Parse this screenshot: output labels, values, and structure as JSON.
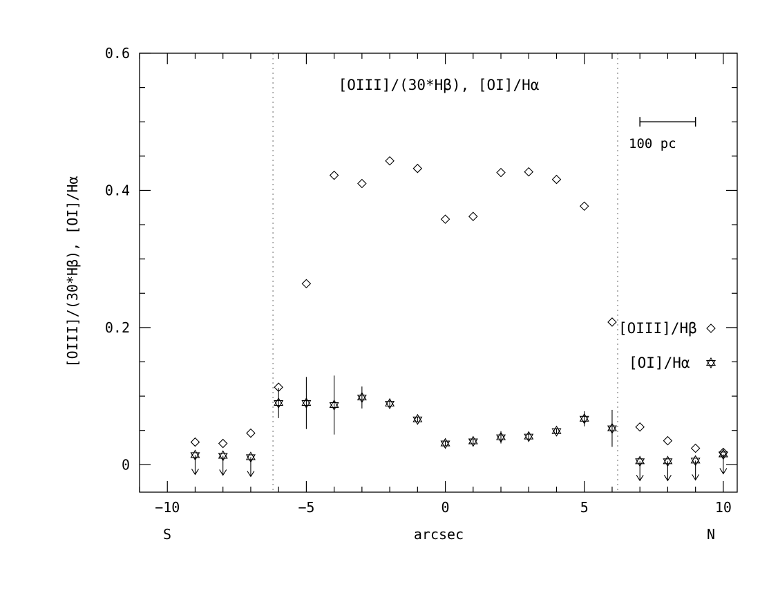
{
  "chart_data": {
    "type": "scatter",
    "title": "[OIII]/(30*Hβ), [OI]/Hα",
    "xlabel": "arcsec",
    "ylabel": "[OIII]/(30*Hβ), [OI]/Hα",
    "xlim": [
      -11,
      10.5
    ],
    "ylim": [
      -0.04,
      0.6
    ],
    "x_ticks": [
      "−10",
      "−5",
      "0",
      "5",
      "10"
    ],
    "x_tick_values": [
      -10,
      -5,
      0,
      5,
      10
    ],
    "y_ticks": [
      "0",
      "0.2",
      "0.4",
      "0.6"
    ],
    "y_tick_values": [
      0,
      0.2,
      0.4,
      0.6
    ],
    "direction_labels": {
      "left": "S",
      "right": "N"
    },
    "vertical_lines": [
      -6.2,
      6.2
    ],
    "scale_bar": {
      "label": "100 pc",
      "x_start": 7,
      "x_end": 9,
      "y": 0.5
    },
    "legend_position": "right",
    "series": [
      {
        "name": "[OIII]/Hβ",
        "marker": "diamond",
        "x": [
          -9,
          -8,
          -7,
          -6,
          -5,
          -4,
          -3,
          -2,
          -1,
          0,
          1,
          2,
          3,
          4,
          5,
          6,
          7,
          8,
          9,
          10
        ],
        "y": [
          0.033,
          0.031,
          0.046,
          0.113,
          0.264,
          0.422,
          0.41,
          0.443,
          0.432,
          0.358,
          0.362,
          0.426,
          0.427,
          0.416,
          0.377,
          0.208,
          0.055,
          0.035,
          0.024,
          0.018
        ]
      },
      {
        "name": "[OI]/Hα",
        "marker": "star",
        "x": [
          -9,
          -8,
          -7,
          -6,
          -5,
          -4,
          -3,
          -2,
          -1,
          0,
          1,
          2,
          3,
          4,
          5,
          6,
          7,
          8,
          9,
          10
        ],
        "y": [
          0.014,
          0.013,
          0.011,
          0.09,
          0.09,
          0.087,
          0.098,
          0.089,
          0.066,
          0.031,
          0.034,
          0.04,
          0.041,
          0.049,
          0.067,
          0.053,
          0.005,
          0.005,
          0.006,
          0.015
        ],
        "err": [
          0,
          0,
          0,
          0.022,
          0.038,
          0.043,
          0.016,
          0.005,
          0.004,
          0.004,
          0.004,
          0.009,
          0.005,
          0.004,
          0.011,
          0.027,
          0,
          0,
          0,
          0
        ],
        "upper_limit": [
          true,
          true,
          true,
          false,
          false,
          false,
          false,
          false,
          false,
          false,
          false,
          false,
          false,
          false,
          false,
          false,
          true,
          true,
          true,
          true
        ]
      }
    ]
  }
}
